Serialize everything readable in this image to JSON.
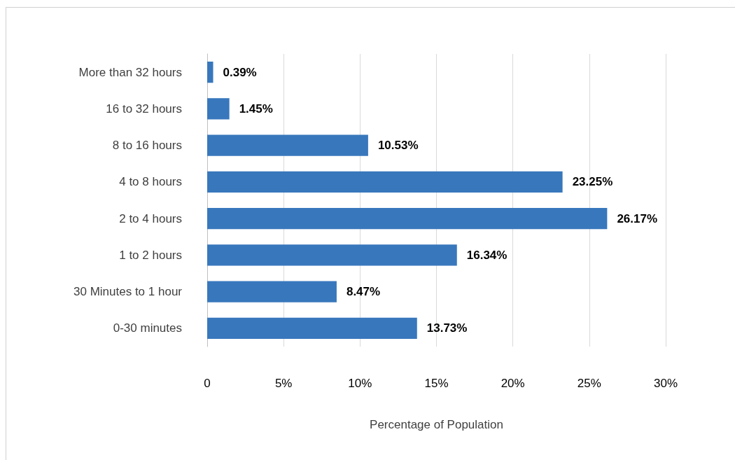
{
  "chart_data": {
    "type": "bar",
    "orientation": "horizontal",
    "categories": [
      "More than 32 hours",
      "16 to 32 hours",
      "8 to 16 hours",
      "4 to 8 hours",
      "2 to 4 hours",
      "1 to 2 hours",
      "30 Minutes to 1 hour",
      "0-30 minutes"
    ],
    "values": [
      0.39,
      1.45,
      10.53,
      23.25,
      26.17,
      16.34,
      8.47,
      13.73
    ],
    "value_labels": [
      "0.39%",
      "1.45%",
      "10.53%",
      "23.25%",
      "26.17%",
      "16.34%",
      "8.47%",
      "13.73%"
    ],
    "color": "#3877bc",
    "xlabel": "Percentage of Population",
    "xlim": [
      0,
      30
    ],
    "xticks": [
      0,
      {
        "value": 5,
        "label": "5%"
      },
      {
        "value": 10,
        "label": "10%"
      },
      {
        "value": 15,
        "label": "15%"
      },
      {
        "value": 20,
        "label": "20%"
      },
      {
        "value": 25,
        "label": "25%"
      },
      {
        "value": 30,
        "label": "30%"
      }
    ],
    "grid": "x"
  }
}
